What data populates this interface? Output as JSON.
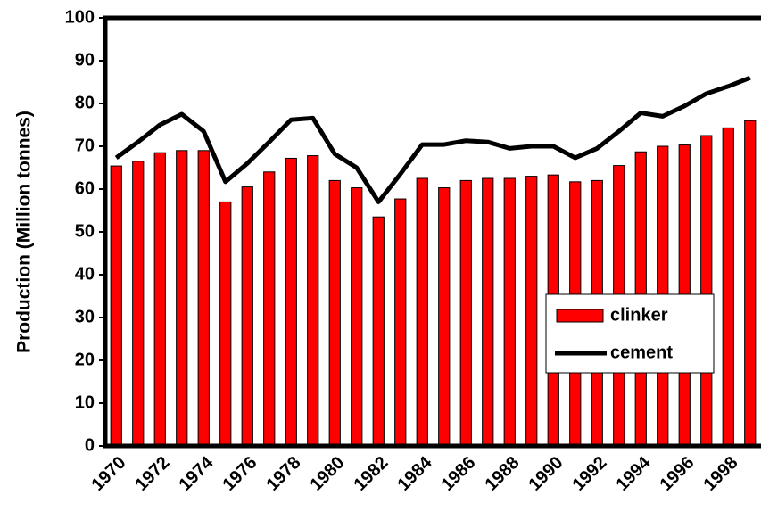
{
  "chart_data": {
    "type": "bar",
    "y_label": "Production (Million tonnes)",
    "categories": [
      "1970",
      null,
      "1972",
      null,
      "1974",
      null,
      "1976",
      null,
      "1978",
      null,
      "1980",
      null,
      "1982",
      null,
      "1984",
      null,
      "1986",
      null,
      "1988",
      null,
      "1990",
      null,
      "1992",
      null,
      "1994",
      null,
      "1996",
      null,
      "1998",
      null
    ],
    "series": [
      {
        "name": "clinker",
        "type": "bar",
        "color": "#ff0000",
        "values": [
          65.4,
          66.5,
          68.5,
          69,
          69,
          57,
          60.5,
          64,
          67.2,
          67.8,
          62,
          60.3,
          53.5,
          57.7,
          62.5,
          60.3,
          62,
          62.5,
          62.5,
          63,
          63.3,
          61.7,
          62,
          65.5,
          68.7,
          70,
          70.3,
          72.5,
          74.3,
          76
        ]
      },
      {
        "name": "cement",
        "type": "line",
        "color": "#000000",
        "values": [
          67.3,
          71,
          75,
          77.5,
          73.5,
          61.7,
          66,
          71,
          76.2,
          76.6,
          68.2,
          65,
          57,
          63.5,
          70.4,
          70.4,
          71.3,
          71,
          69.5,
          70,
          70,
          67.3,
          69.5,
          73.5,
          77.8,
          77,
          79.4,
          82.3,
          84,
          86
        ]
      }
    ],
    "ylim": [
      0,
      100
    ],
    "yticks": [
      0,
      10,
      20,
      30,
      40,
      50,
      60,
      70,
      80,
      90,
      100
    ],
    "grid": false,
    "legend": "lower right"
  }
}
